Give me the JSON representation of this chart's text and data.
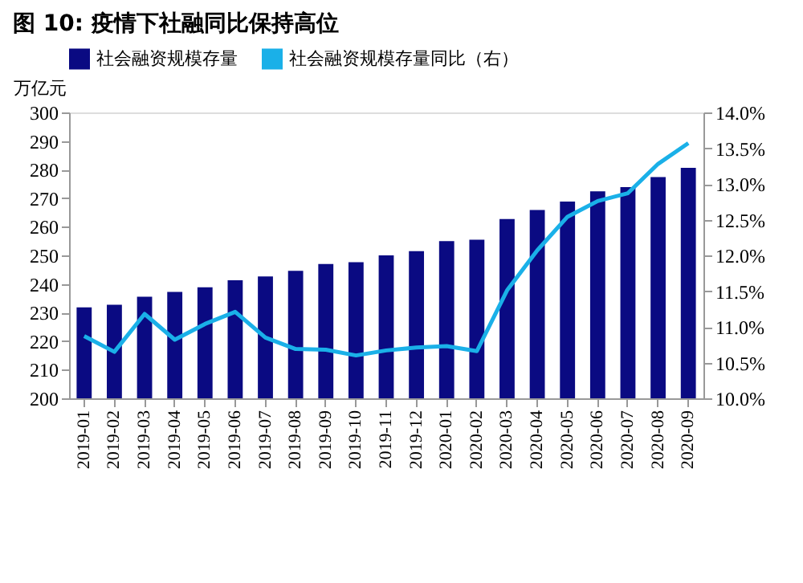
{
  "chart_data": {
    "type": "bar",
    "title": "图 10:  疫情下社融同比保持高位",
    "ylabel": "万亿元",
    "categories": [
      "2019-01",
      "2019-02",
      "2019-03",
      "2019-04",
      "2019-05",
      "2019-06",
      "2019-07",
      "2019-08",
      "2019-09",
      "2019-10",
      "2019-11",
      "2019-12",
      "2020-01",
      "2020-02",
      "2020-03",
      "2020-04",
      "2020-05",
      "2020-06",
      "2020-07",
      "2020-08",
      "2020-09"
    ],
    "series": [
      {
        "name": "社会融资规模存量",
        "color": "#0a0a82",
        "values": [
          231.8,
          232.7,
          235.5,
          237.2,
          238.8,
          241.3,
          242.6,
          244.6,
          247.0,
          247.6,
          250.0,
          251.5,
          255.0,
          255.5,
          262.7,
          265.9,
          268.8,
          272.4,
          273.9,
          277.4,
          280.6
        ]
      },
      {
        "name": "社会融资规模存量同比（右）",
        "type": "line",
        "axis": "y2",
        "color": "#1ab0e8",
        "values": [
          10.87,
          10.65,
          11.18,
          10.82,
          11.04,
          11.21,
          10.85,
          10.69,
          10.68,
          10.6,
          10.67,
          10.71,
          10.73,
          10.66,
          11.51,
          12.07,
          12.54,
          12.76,
          12.87,
          13.28,
          13.57
        ]
      }
    ],
    "ylim": [
      200,
      300
    ],
    "yticks": [
      200,
      210,
      220,
      230,
      240,
      250,
      260,
      270,
      280,
      290,
      300
    ],
    "y2lim": [
      10,
      14
    ],
    "y2ticks": [
      {
        "value": 10,
        "label": "10.0%"
      },
      {
        "value": 10.5,
        "label": "10.5%"
      },
      {
        "value": 11,
        "label": "11.0%"
      },
      {
        "value": 11.5,
        "label": "11.5%"
      },
      {
        "value": 12,
        "label": "12.0%"
      },
      {
        "value": 12.5,
        "label": "12.5%"
      },
      {
        "value": 13,
        "label": "13.0%"
      },
      {
        "value": 13.5,
        "label": "13.5%"
      },
      {
        "value": 14,
        "label": "14.0%"
      }
    ],
    "legend": "top",
    "grid": false
  }
}
